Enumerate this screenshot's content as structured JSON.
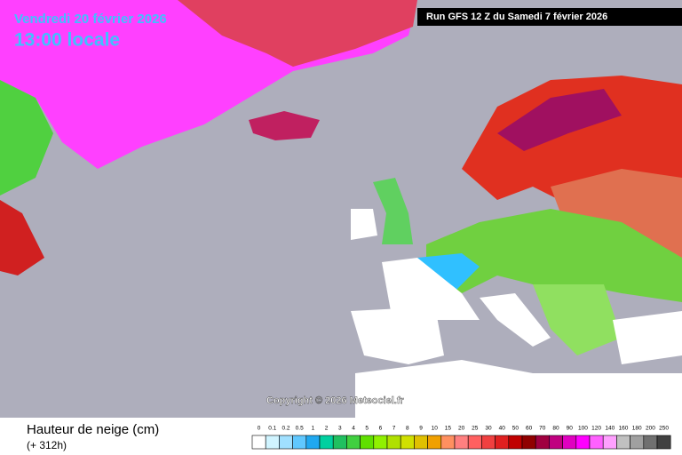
{
  "header": {
    "date": "Vendredi 20 février 2026",
    "time": "13:00 locale",
    "run": "Run GFS 12 Z du Samedi 7 février 2026"
  },
  "map": {
    "copyright": "Copyright © 2026 Meteociel.fr"
  },
  "footer": {
    "title": "Hauteur de neige (cm)",
    "lead": "(+ 312h)"
  },
  "legend": {
    "values": [
      0,
      0.1,
      0.2,
      0.5,
      1,
      2,
      3,
      4,
      5,
      6,
      7,
      8,
      9,
      10,
      15,
      20,
      25,
      30,
      40,
      50,
      60,
      70,
      80,
      90,
      100,
      120,
      140,
      160,
      180,
      200,
      250
    ],
    "colors": [
      "#ffffff",
      "#d0f4ff",
      "#a0e0ff",
      "#60c8ff",
      "#20a8f0",
      "#00d0a0",
      "#20c060",
      "#40d040",
      "#60e000",
      "#90f000",
      "#b0e000",
      "#d0e000",
      "#e0c000",
      "#f0a000",
      "#ff9060",
      "#ff8080",
      "#ff6060",
      "#f04040",
      "#e02020",
      "#c00000",
      "#900000",
      "#a00040",
      "#c00080",
      "#e000c0",
      "#ff00ff",
      "#ff60ff",
      "#ffa0ff",
      "#c0c0c0",
      "#a0a0a0",
      "#707070",
      "#404040"
    ]
  }
}
